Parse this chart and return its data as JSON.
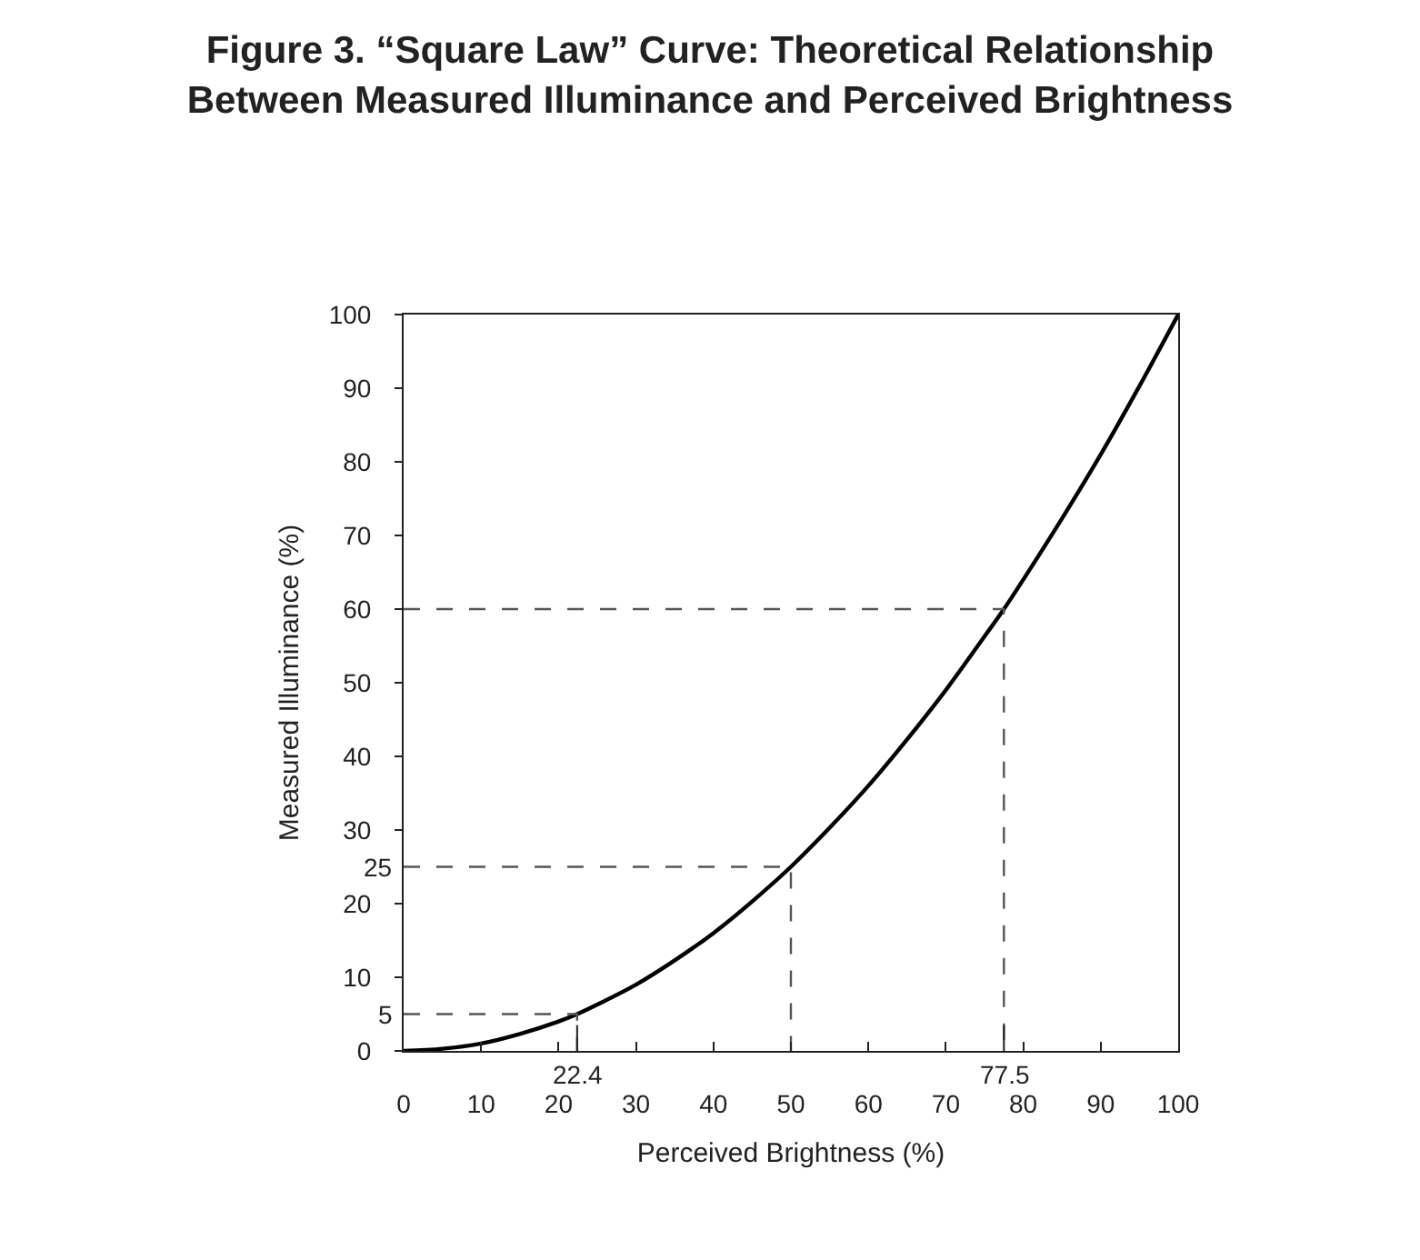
{
  "chart_data": {
    "type": "line",
    "title": "Figure 3. “Square Law” Curve: Theoretical Relationship\nBetween Measured Illuminance and Perceived Brightness",
    "xlabel": "Perceived Brightness (%)",
    "ylabel": "Measured Illuminance (%)",
    "xlim": [
      0,
      100
    ],
    "ylim": [
      0,
      100
    ],
    "xticks": [
      0,
      10,
      20,
      30,
      40,
      50,
      60,
      70,
      80,
      90,
      100
    ],
    "yticks": [
      0,
      10,
      20,
      30,
      40,
      50,
      60,
      70,
      80,
      90,
      100
    ],
    "annotations": [
      {
        "text": "22.4",
        "x": 22.4,
        "y": 0
      },
      {
        "text": "77.5",
        "x": 77.5,
        "y": 0
      },
      {
        "text": "5",
        "x": 0,
        "y": 5
      },
      {
        "text": "25",
        "x": 0,
        "y": 25
      }
    ],
    "marker": "none",
    "x": [
      0,
      5,
      10,
      15,
      20,
      22.4,
      25,
      30,
      35,
      40,
      45,
      50,
      55,
      60,
      65,
      70,
      75,
      77.5,
      80,
      85,
      90,
      95,
      100
    ],
    "series": [
      {
        "color": "#000000",
        "line_style": "solid",
        "values": [
          0,
          0.3,
          1,
          2.3,
          4,
          5,
          6.3,
          9,
          12.3,
          16,
          20.3,
          25,
          30.3,
          36,
          42.3,
          49,
          56.3,
          60,
          64,
          72.3,
          81,
          90.3,
          100
        ]
      },
      {
        "color": "#555555",
        "line_style": "dashed",
        "x": [
          0,
          22.4,
          22.4
        ],
        "values": [
          5,
          5,
          0
        ]
      },
      {
        "color": "#555555",
        "line_style": "dashed",
        "x": [
          0,
          50,
          50
        ],
        "values": [
          25,
          25,
          0
        ]
      },
      {
        "color": "#555555",
        "line_style": "dashed",
        "x": [
          0,
          77.5,
          77.5
        ],
        "values": [
          60,
          60,
          0
        ]
      }
    ]
  }
}
